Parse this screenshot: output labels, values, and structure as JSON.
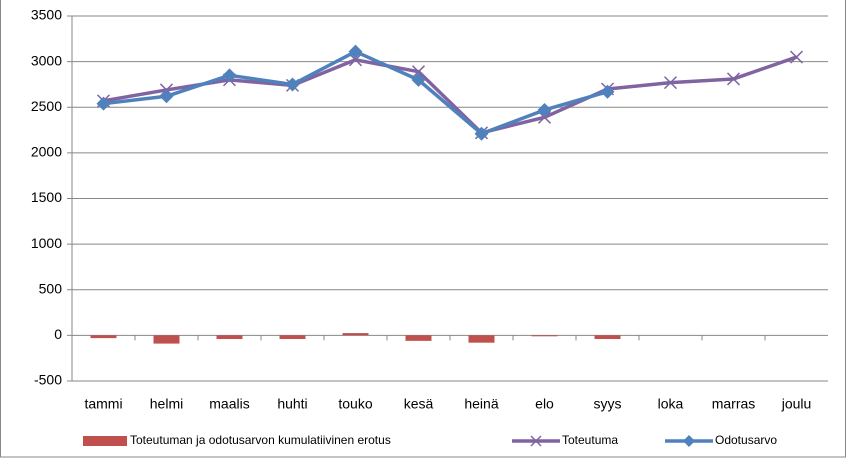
{
  "chart_data": {
    "type": "line",
    "categories": [
      "tammi",
      "helmi",
      "maalis",
      "huhti",
      "touko",
      "kesä",
      "heinä",
      "elo",
      "syys",
      "loka",
      "marras",
      "joulu"
    ],
    "series": [
      {
        "name": "Toteutuman ja odotusarvon kumulatiivinen erotus",
        "type": "bar",
        "color": "#c0504d",
        "values": [
          -30,
          -90,
          -40,
          -40,
          25,
          -60,
          -80,
          -10,
          -40,
          null,
          null,
          null
        ]
      },
      {
        "name": "Toteutuma",
        "type": "line",
        "marker": "x",
        "color": "#8064a2",
        "values": [
          2570,
          2690,
          2800,
          2740,
          3020,
          2890,
          2220,
          2390,
          2700,
          2770,
          2810,
          3050
        ]
      },
      {
        "name": "Odotusarvo",
        "type": "line",
        "marker": "diamond",
        "color": "#4f81bd",
        "values": [
          2540,
          2620,
          2850,
          2750,
          3110,
          2800,
          2210,
          2470,
          2670,
          null,
          null,
          null
        ]
      }
    ],
    "ylim": [
      -500,
      3500
    ],
    "yticks": [
      -500,
      0,
      500,
      1000,
      1500,
      2000,
      2500,
      3000,
      3500
    ],
    "grid": true,
    "legend": "bottom"
  }
}
